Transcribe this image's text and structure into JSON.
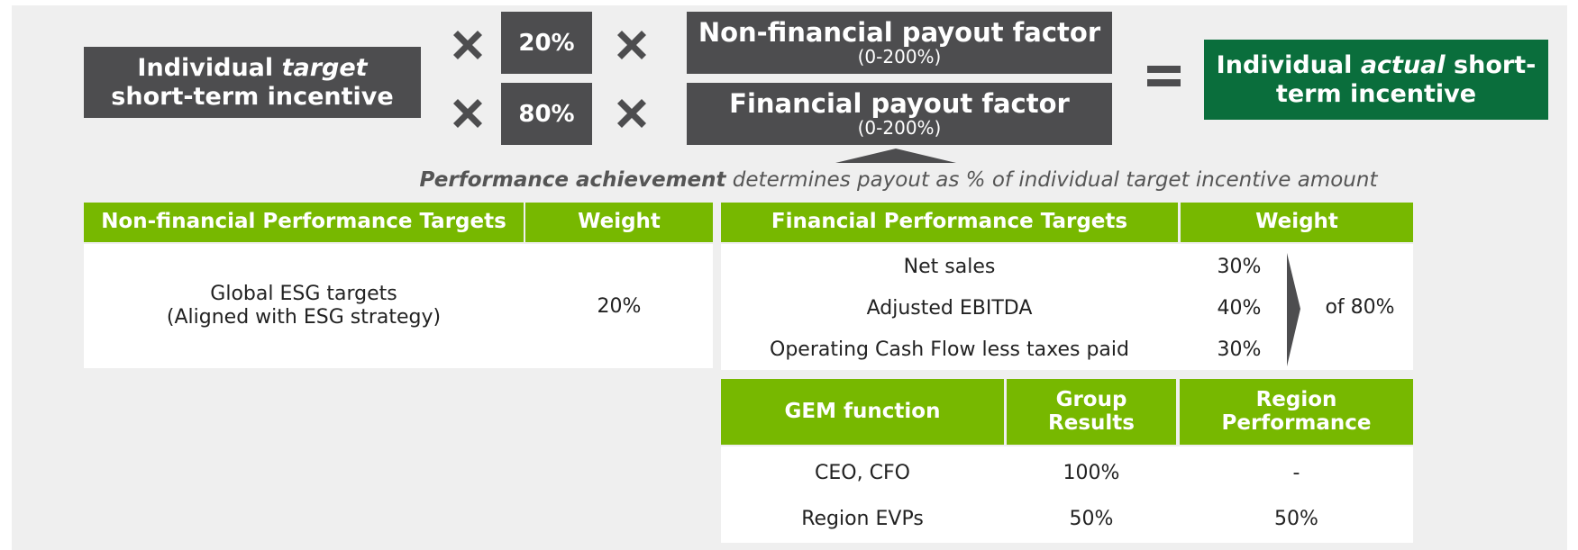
{
  "formula": {
    "target": {
      "prefix": "Individual ",
      "emph": "target",
      "suffix": " short-term incentive"
    },
    "weights": [
      "20%",
      "80%"
    ],
    "factors": [
      {
        "title": "Non-financial payout factor",
        "range": "(0-200%)"
      },
      {
        "title": "Financial payout factor",
        "range": "(0-200%)"
      }
    ],
    "actual": {
      "prefix": "Individual ",
      "emph": "actual",
      "suffix": " short-term incentive"
    }
  },
  "caption": {
    "emph": "Performance achievement",
    "rest": " determines payout as % of individual target incentive amount"
  },
  "nonfinancial_table": {
    "headers": [
      "Non-financial Performance Targets",
      "Weight"
    ],
    "target_lines": [
      "Global ESG targets",
      "(Aligned with ESG strategy)"
    ],
    "weight": "20%"
  },
  "financial_table": {
    "headers": [
      "Financial Performance Targets",
      "Weight"
    ],
    "rows": [
      [
        "Net sales",
        "30%"
      ],
      [
        "Adjusted EBITDA",
        "40%"
      ],
      [
        "Operating Cash Flow less taxes paid",
        "30%"
      ]
    ],
    "note": "of 80%"
  },
  "gem_table": {
    "headers": [
      "GEM function",
      "Group Results",
      "Region Performance"
    ],
    "rows": [
      [
        "CEO, CFO",
        "100%",
        "-"
      ],
      [
        "Region EVPs",
        "50%",
        "50%"
      ]
    ]
  }
}
